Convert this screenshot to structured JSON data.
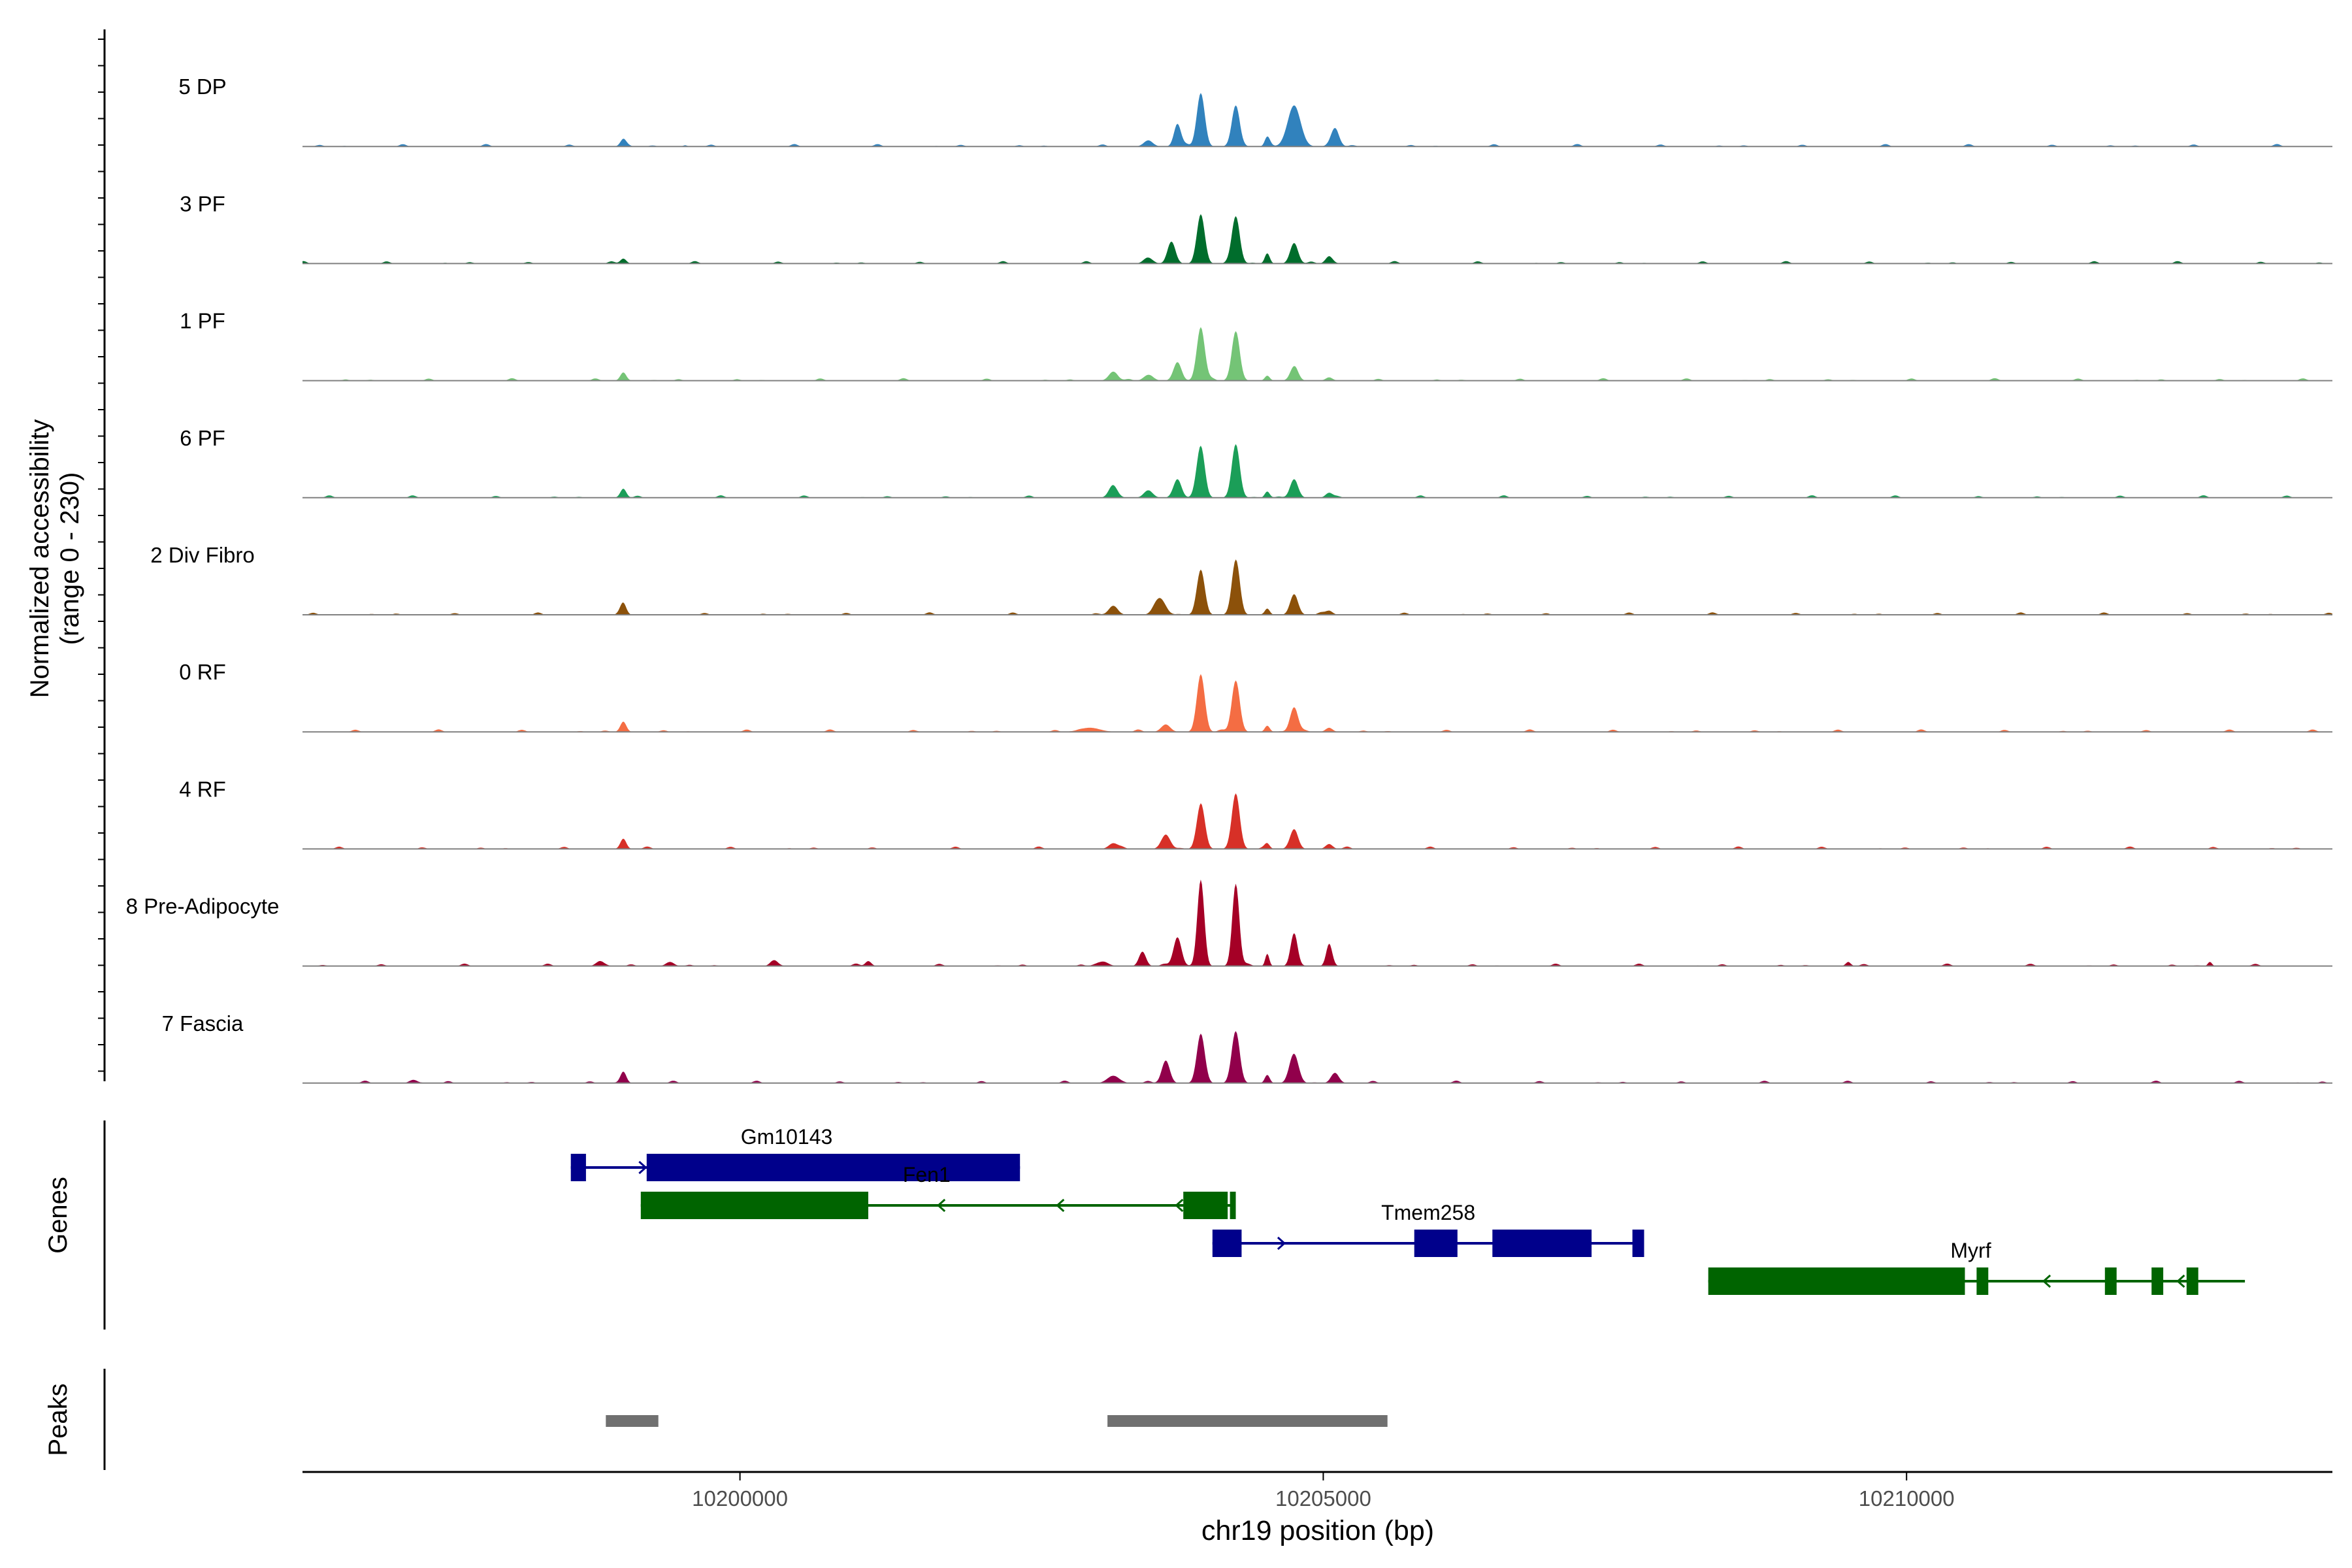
{
  "chart_data": {
    "type": "area",
    "panels": {
      "coverage": {
        "ylabel_line1": "Normalized accessibility",
        "ylabel_line2": "(range 0 - 230)"
      },
      "genes": {
        "label": "Genes"
      },
      "peaks": {
        "label": "Peaks"
      }
    },
    "xlabel": "chr19 position (bp)",
    "xlim": [
      10196250,
      10213650
    ],
    "xticks": [
      {
        "value": 10200000,
        "label": "10200000"
      },
      {
        "value": 10205000,
        "label": "10205000"
      },
      {
        "value": 10210000,
        "label": "10210000"
      }
    ],
    "ylim": [
      0,
      230
    ],
    "tracks": [
      {
        "name": "5 DP",
        "color": "#3182bd",
        "side": [
          10199060,
          10199640,
          10203200,
          10205300
        ]
      },
      {
        "name": "3 PF",
        "color": "#006d2c",
        "side": [
          10199060,
          10203000,
          10205300
        ]
      },
      {
        "name": "1 PF",
        "color": "#74c476",
        "side": [
          10199060,
          10203000,
          10205300
        ]
      },
      {
        "name": "6 PF",
        "color": "#1b9e58",
        "side": [
          10199060,
          10203000,
          10205300
        ]
      },
      {
        "name": "2 Div Fibro",
        "color": "#8c510a",
        "side": [
          10199060,
          10203000,
          10205300
        ]
      },
      {
        "name": "0 RF",
        "color": "#f46d43",
        "side": [
          10199060,
          10203000,
          10205300
        ]
      },
      {
        "name": "4 RF",
        "color": "#d73027",
        "side": [
          10199060,
          10203000,
          10205300
        ]
      },
      {
        "name": "8 Pre-Adipocyte",
        "color": "#a50026",
        "side": [
          10198700,
          10200100,
          10202000,
          10208500,
          10211000,
          10212600
        ]
      },
      {
        "name": "7 Fascia",
        "color": "#91004b",
        "side": [
          10197100,
          10199060,
          10203000,
          10205300
        ]
      }
    ],
    "track_peaks": [
      [
        [
          10199000,
          18,
          60
        ],
        [
          10199530,
          3,
          40
        ],
        [
          10203500,
          15,
          90
        ],
        [
          10203750,
          55,
          70
        ],
        [
          10203950,
          130,
          80
        ],
        [
          10204250,
          100,
          80
        ],
        [
          10204520,
          20,
          50
        ],
        [
          10204750,
          100,
          130
        ],
        [
          10205100,
          45,
          80
        ]
      ],
      [
        [
          10199000,
          12,
          60
        ],
        [
          10203500,
          14,
          90
        ],
        [
          10203700,
          50,
          80
        ],
        [
          10203950,
          120,
          80
        ],
        [
          10204250,
          115,
          80
        ],
        [
          10204520,
          25,
          50
        ],
        [
          10204750,
          50,
          80
        ],
        [
          10205050,
          18,
          70
        ]
      ],
      [
        [
          10199000,
          20,
          60
        ],
        [
          10203200,
          22,
          90
        ],
        [
          10203500,
          14,
          90
        ],
        [
          10203750,
          45,
          80
        ],
        [
          10203950,
          130,
          80
        ],
        [
          10204250,
          120,
          80
        ],
        [
          10204520,
          12,
          50
        ],
        [
          10204750,
          30,
          80
        ],
        [
          10205050,
          8,
          70
        ]
      ],
      [
        [
          10199000,
          22,
          60
        ],
        [
          10203200,
          25,
          90
        ],
        [
          10203500,
          18,
          90
        ],
        [
          10203750,
          45,
          80
        ],
        [
          10203950,
          125,
          80
        ],
        [
          10204250,
          130,
          80
        ],
        [
          10204520,
          15,
          50
        ],
        [
          10204750,
          45,
          80
        ],
        [
          10205050,
          12,
          70
        ]
      ],
      [
        [
          10199000,
          25,
          60
        ],
        [
          10203200,
          22,
          90
        ],
        [
          10203600,
          40,
          110
        ],
        [
          10203950,
          110,
          80
        ],
        [
          10204250,
          130,
          80
        ],
        [
          10204520,
          15,
          50
        ],
        [
          10204750,
          50,
          80
        ],
        [
          10205050,
          10,
          70
        ]
      ],
      [
        [
          10199000,
          25,
          60
        ],
        [
          10203000,
          10,
          200
        ],
        [
          10203650,
          18,
          90
        ],
        [
          10203950,
          140,
          80
        ],
        [
          10204250,
          125,
          80
        ],
        [
          10204520,
          15,
          50
        ],
        [
          10204750,
          60,
          80
        ],
        [
          10205050,
          10,
          70
        ]
      ],
      [
        [
          10199000,
          25,
          60
        ],
        [
          10203200,
          14,
          90
        ],
        [
          10203650,
          35,
          90
        ],
        [
          10203950,
          110,
          80
        ],
        [
          10204250,
          135,
          80
        ],
        [
          10204520,
          12,
          50
        ],
        [
          10204750,
          48,
          80
        ],
        [
          10205050,
          12,
          70
        ]
      ],
      [
        [
          10198800,
          12,
          80
        ],
        [
          10199400,
          10,
          80
        ],
        [
          10200300,
          10,
          80
        ],
        [
          10201100,
          12,
          60
        ],
        [
          10203100,
          10,
          120
        ],
        [
          10203450,
          35,
          70
        ],
        [
          10203750,
          70,
          80
        ],
        [
          10203950,
          210,
          70
        ],
        [
          10204250,
          200,
          70
        ],
        [
          10204520,
          30,
          40
        ],
        [
          10204750,
          80,
          70
        ],
        [
          10205050,
          50,
          60
        ],
        [
          10209500,
          10,
          50
        ],
        [
          10212600,
          10,
          40
        ]
      ],
      [
        [
          10197200,
          8,
          80
        ],
        [
          10199000,
          28,
          60
        ],
        [
          10203200,
          18,
          120
        ],
        [
          10203650,
          55,
          80
        ],
        [
          10203950,
          120,
          80
        ],
        [
          10204250,
          125,
          80
        ],
        [
          10204520,
          20,
          50
        ],
        [
          10204750,
          70,
          90
        ],
        [
          10205100,
          25,
          80
        ]
      ]
    ],
    "genes": [
      {
        "name": "Gm10143",
        "color": "#00008b",
        "start": 10198550,
        "end": 10202400,
        "strand": "+",
        "row": 2,
        "exons": [
          [
            10198550,
            10198680
          ],
          [
            10199200,
            10202400
          ]
        ],
        "label_pos": 10200400
      },
      {
        "name": "Fen1",
        "color": "#006400",
        "start": 10199150,
        "end": 10204250,
        "strand": "-",
        "row": 1,
        "exons": [
          [
            10199150,
            10201100
          ],
          [
            10203800,
            10204180
          ],
          [
            10204200,
            10204250
          ]
        ],
        "label_pos": 10201600
      },
      {
        "name": "Tmem258",
        "color": "#00008b",
        "start": 10204050,
        "end": 10207750,
        "strand": "+",
        "row": 0,
        "exons": [
          [
            10204050,
            10204300
          ],
          [
            10205780,
            10206150
          ],
          [
            10206450,
            10207300
          ],
          [
            10207650,
            10207750
          ]
        ],
        "label_pos": 10205900
      },
      {
        "name": "Myrf",
        "color": "#006400",
        "start": 10208300,
        "end": 10212900,
        "strand": "-",
        "row": -1,
        "exons": [
          [
            10208300,
            10210500
          ],
          [
            10210600,
            10210700
          ],
          [
            10211700,
            10211800
          ],
          [
            10212100,
            10212200
          ],
          [
            10212400,
            10212500
          ]
        ],
        "label_pos": 10210550
      }
    ],
    "peaks": [
      [
        10198850,
        10199300
      ],
      [
        10203150,
        10205550
      ]
    ]
  }
}
